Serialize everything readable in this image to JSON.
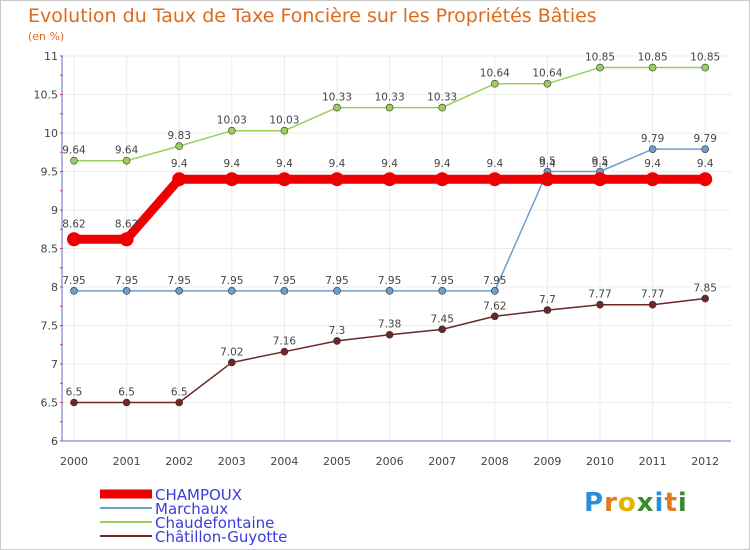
{
  "chart_data": {
    "type": "line",
    "title": "Evolution du Taux de Taxe Foncière sur les Propriétés Bâties",
    "subtitle": "(en %)",
    "xlabel": "",
    "ylabel": "",
    "x": [
      "2000",
      "2001",
      "2002",
      "2003",
      "2004",
      "2005",
      "2006",
      "2007",
      "2008",
      "2009",
      "2010",
      "2011",
      "2012"
    ],
    "ylim": [
      6,
      11
    ],
    "yticks": [
      "6",
      "6.5",
      "7",
      "7.5",
      "8",
      "8.5",
      "9",
      "9.5",
      "10",
      "10.5",
      "11"
    ],
    "series": [
      {
        "name": "CHAMPOUX",
        "color": "#ee0000",
        "values": [
          8.62,
          8.62,
          9.4,
          9.4,
          9.4,
          9.4,
          9.4,
          9.4,
          9.4,
          9.4,
          9.4,
          9.4,
          9.4
        ]
      },
      {
        "name": "Marchaux",
        "color": "#6c9fcf",
        "values": [
          7.95,
          7.95,
          7.95,
          7.95,
          7.95,
          7.95,
          7.95,
          7.95,
          7.95,
          9.5,
          9.5,
          9.79,
          9.79
        ]
      },
      {
        "name": "Chaudefontaine",
        "color": "#99d05a",
        "values": [
          9.64,
          9.64,
          9.83,
          10.03,
          10.03,
          10.33,
          10.33,
          10.33,
          10.64,
          10.64,
          10.85,
          10.85,
          10.85
        ]
      },
      {
        "name": "Châtillon-Guyotte",
        "color": "#6e2626",
        "values": [
          6.5,
          6.5,
          6.5,
          7.02,
          7.16,
          7.3,
          7.38,
          7.45,
          7.62,
          7.7,
          7.77,
          7.77,
          7.85
        ]
      }
    ],
    "legend_position": "bottom-left"
  },
  "logo": {
    "letters": [
      "P",
      "r",
      "o",
      "x",
      "i",
      "t",
      "i"
    ],
    "colors": [
      "#2a8fd8",
      "#e07b1a",
      "#e2b400",
      "#3a8d2f",
      "#2a8fd8",
      "#e07b1a",
      "#3a8d2f"
    ]
  }
}
